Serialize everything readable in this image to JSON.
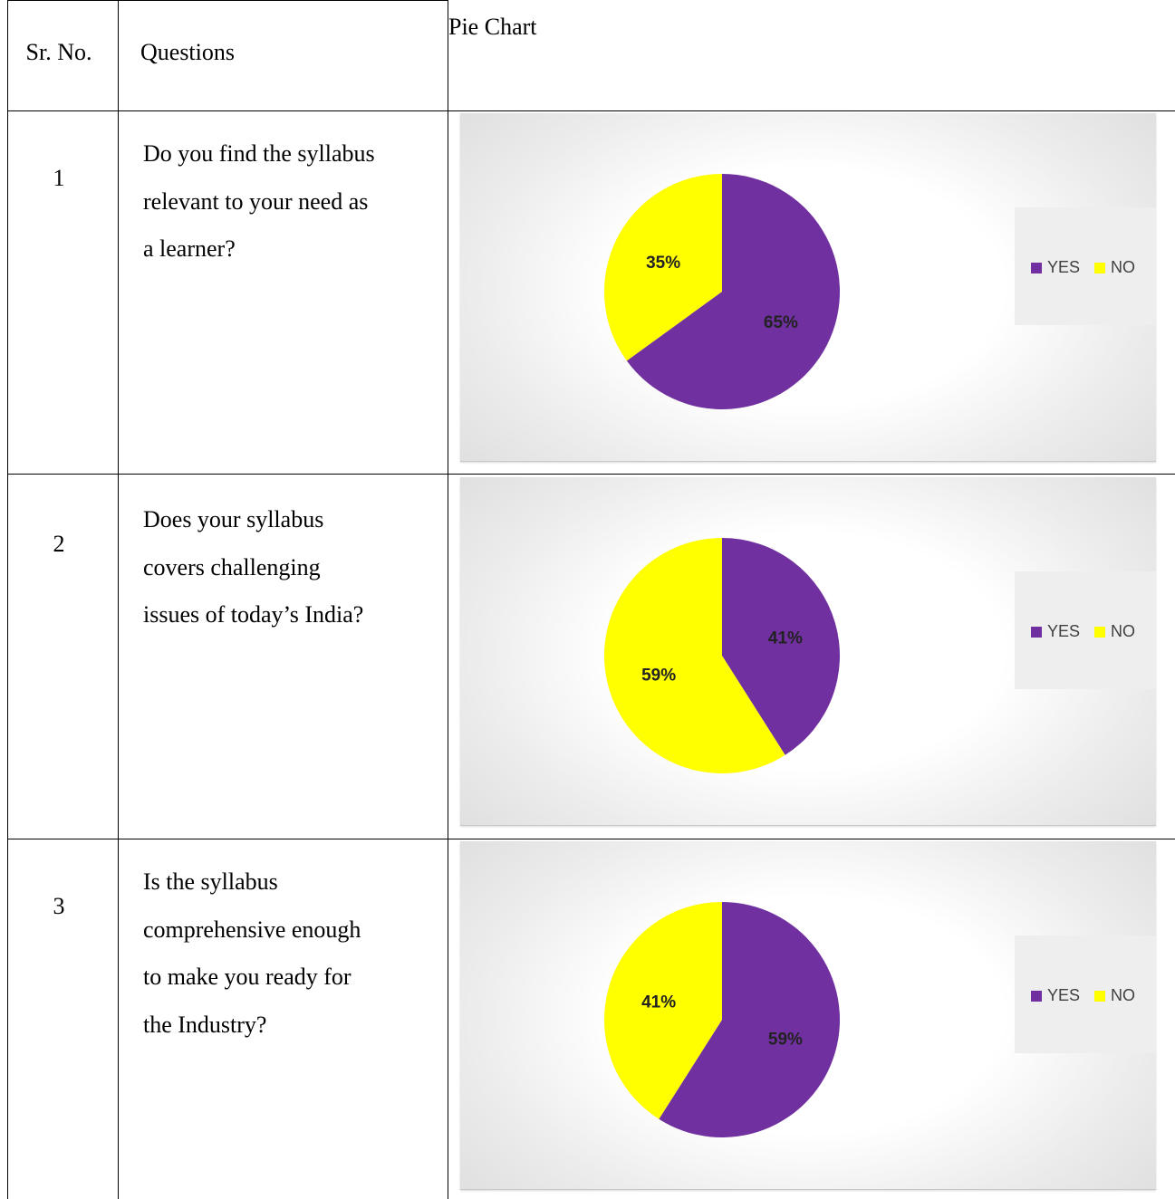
{
  "table": {
    "headers": {
      "sr_no": "Sr. No.",
      "questions": "Questions",
      "chart": "Pie Chart"
    },
    "rows": [
      {
        "number": "1",
        "question_lines": [
          "Do you find the syllabus",
          "relevant to your need as",
          "a learner?"
        ]
      },
      {
        "number": "2",
        "question_lines": [
          "Does your syllabus",
          "covers challenging",
          "issues of today’s India?"
        ]
      },
      {
        "number": "3",
        "question_lines": [
          "Is the syllabus",
          "comprehensive enough",
          "to make you ready for",
          "the Industry?"
        ]
      }
    ]
  },
  "colors": {
    "yes": "#7030a0",
    "no": "#ffff00"
  },
  "chart_data": [
    {
      "type": "pie",
      "categories": [
        "YES",
        "NO"
      ],
      "values": [
        65,
        35
      ],
      "labels": [
        "65%",
        "35%"
      ],
      "legend": [
        "YES",
        "NO"
      ],
      "legend_position": "right"
    },
    {
      "type": "pie",
      "categories": [
        "YES",
        "NO"
      ],
      "values": [
        41,
        59
      ],
      "labels": [
        "41%",
        "59%"
      ],
      "legend": [
        "YES",
        "NO"
      ],
      "legend_position": "right"
    },
    {
      "type": "pie",
      "categories": [
        "YES",
        "NO"
      ],
      "values": [
        59,
        41
      ],
      "labels": [
        "59%",
        "41%"
      ],
      "legend": [
        "YES",
        "NO"
      ],
      "legend_position": "right"
    }
  ]
}
